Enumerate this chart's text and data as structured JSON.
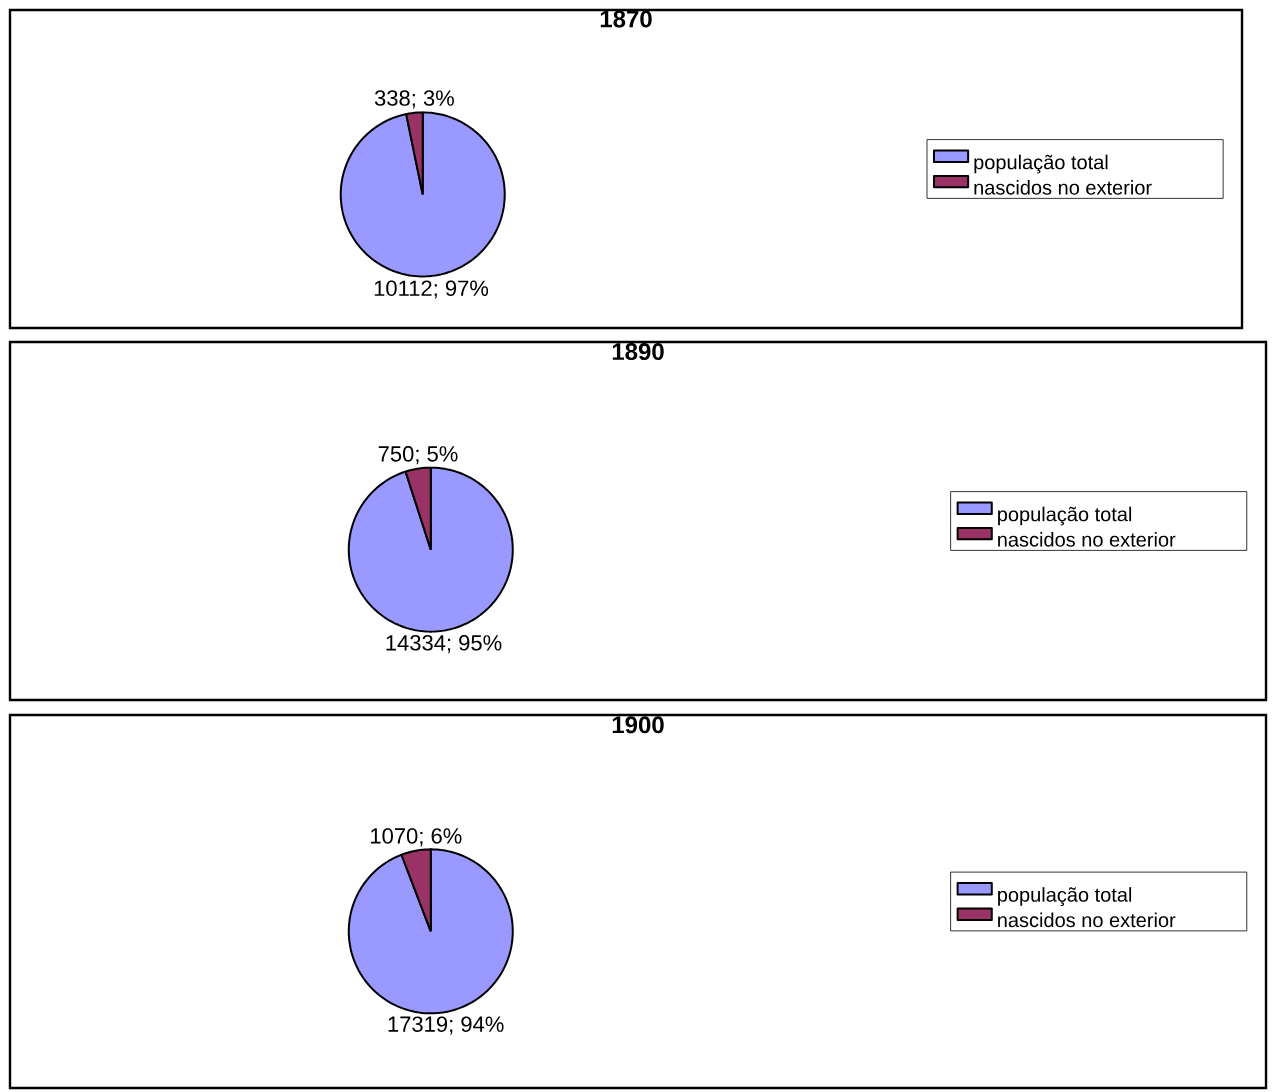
{
  "chart_data": [
    {
      "type": "pie",
      "title": "1870",
      "categories": [
        "população total",
        "nascidos no exterior"
      ],
      "values": [
        10112,
        338
      ],
      "colors": [
        "#9999ff",
        "#993366"
      ],
      "value_labels": [
        "10112; 97%",
        "338; 3%"
      ],
      "legend": "right"
    },
    {
      "type": "pie",
      "title": "1890",
      "categories": [
        "população total",
        "nascidos no exterior"
      ],
      "values": [
        14334,
        750
      ],
      "colors": [
        "#9999ff",
        "#993366"
      ],
      "value_labels": [
        "14334; 95%",
        "750; 5%"
      ],
      "legend": "right"
    },
    {
      "type": "pie",
      "title": "1900",
      "categories": [
        "população total",
        "nascidos no exterior"
      ],
      "values": [
        17319,
        1070
      ],
      "colors": [
        "#9999ff",
        "#993366"
      ],
      "value_labels": [
        "17319; 94%",
        "1070; 6%"
      ],
      "legend": "right"
    }
  ]
}
